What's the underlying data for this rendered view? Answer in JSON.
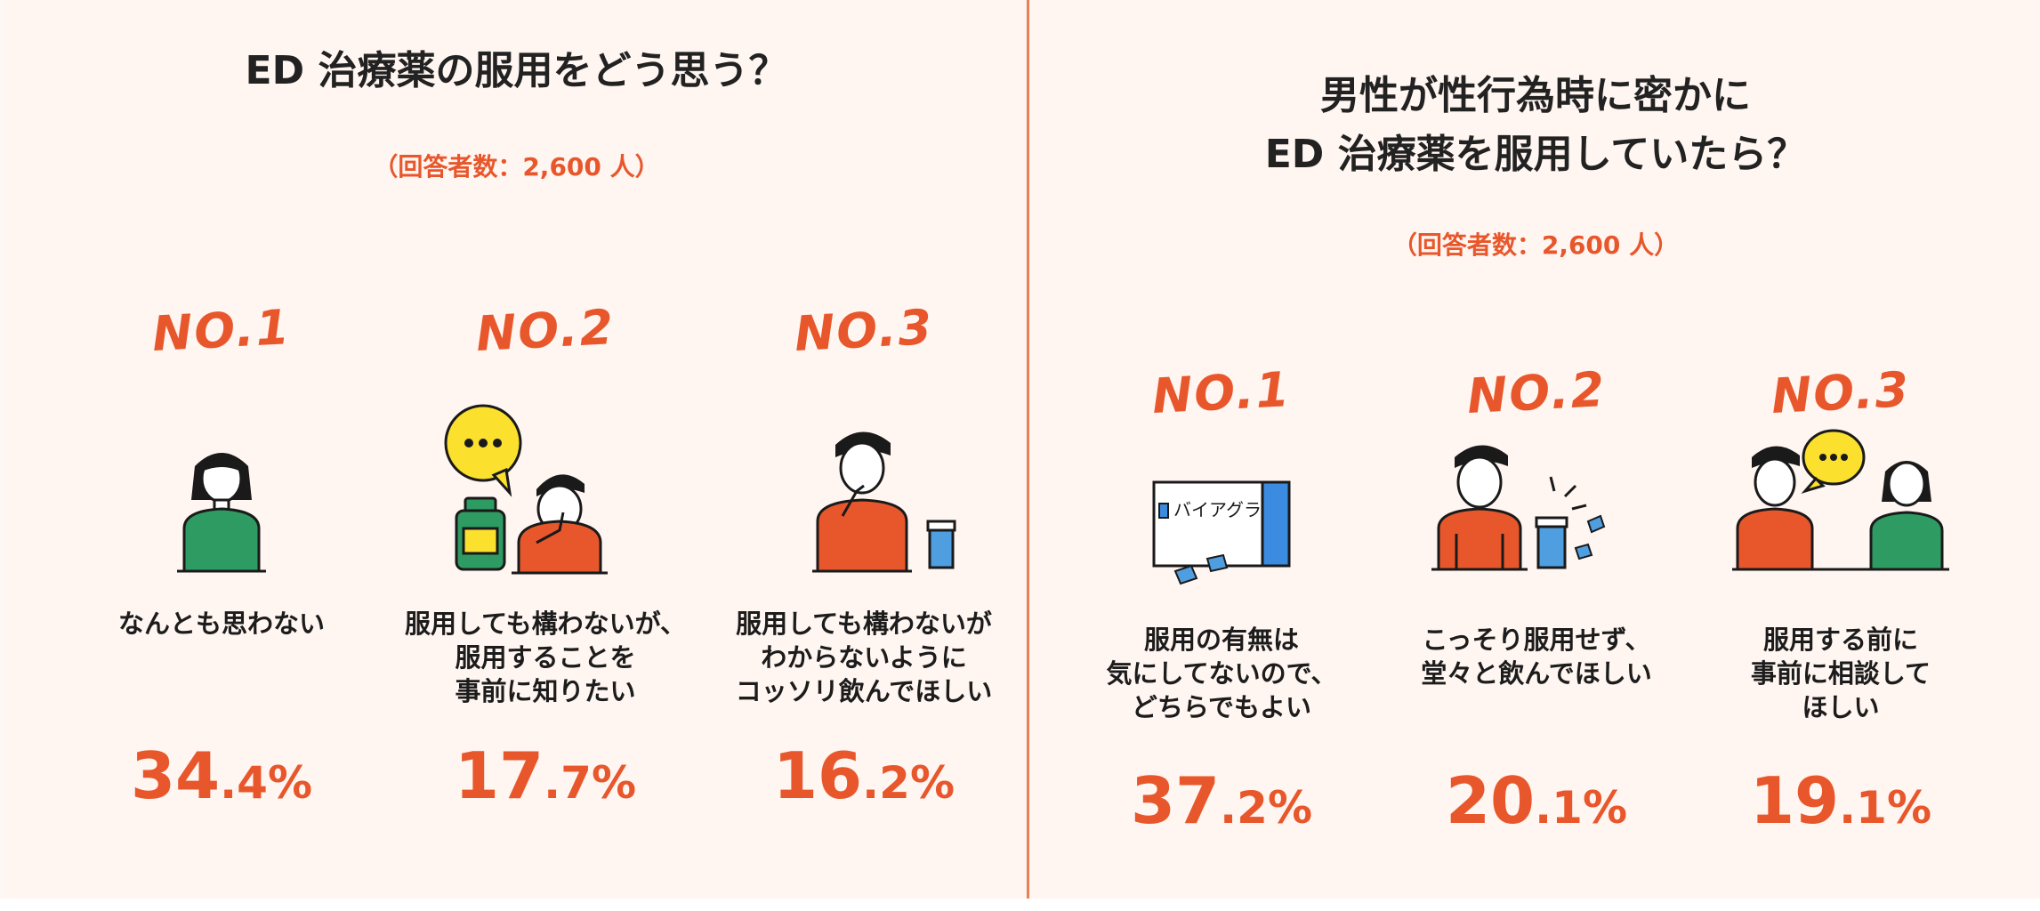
{
  "left": {
    "title": "ED 治療薬の服用をどう思う？",
    "respondents": "（回答者数：2,600 人）",
    "items": [
      {
        "rank": "NO.1",
        "label_lines": [
          "なんとも思わない"
        ],
        "pct_int": "34",
        "pct_dec": ".4%",
        "illustration": "woman-green-sweater-icon"
      },
      {
        "rank": "NO.2",
        "label_lines": [
          "服用しても構わないが、",
          "服用することを",
          "事前に知りたい"
        ],
        "pct_int": "17",
        "pct_dec": ".7%",
        "illustration": "thinking-man-with-pill-bottle-icon"
      },
      {
        "rank": "NO.3",
        "label_lines": [
          "服用しても構わないが",
          "わからないように",
          "コッソリ飲んでほしい"
        ],
        "pct_int": "16",
        "pct_dec": ".2%",
        "illustration": "man-with-water-glass-icon"
      }
    ]
  },
  "right": {
    "title_lines": [
      "男性が性行為時に密かに",
      "ED 治療薬を服用していたら？"
    ],
    "respondents": "（回答者数：2,600 人）",
    "items": [
      {
        "rank": "NO.1",
        "label_lines": [
          "服用の有無は",
          "気にしてないので、",
          "どちらでもよい"
        ],
        "pct_int": "37",
        "pct_dec": ".2%",
        "illustration": "medicine-box-icon",
        "box_text": "バイアグラ"
      },
      {
        "rank": "NO.2",
        "label_lines": [
          "こっそり服用せず、",
          "堂々と飲んでほしい"
        ],
        "pct_int": "20",
        "pct_dec": ".1%",
        "illustration": "man-with-water-and-pills-icon"
      },
      {
        "rank": "NO.3",
        "label_lines": [
          "服用する前に",
          "事前に相談して",
          "ほしい"
        ],
        "pct_int": "19",
        "pct_dec": ".1%",
        "illustration": "couple-talking-icon"
      }
    ]
  },
  "colors": {
    "accent": "#e8572b",
    "orange_shirt": "#e8572b",
    "green_shirt": "#2e9b62",
    "speech_yellow": "#fbe02e",
    "water_blue": "#4f9ee0",
    "box_blue": "#3b8be0"
  }
}
